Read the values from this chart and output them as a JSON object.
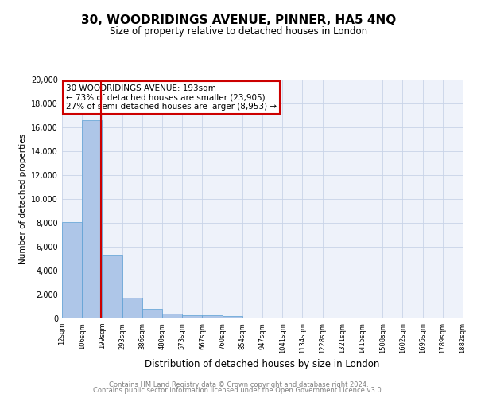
{
  "title": "30, WOODRIDINGS AVENUE, PINNER, HA5 4NQ",
  "subtitle": "Size of property relative to detached houses in London",
  "xlabel": "Distribution of detached houses by size in London",
  "ylabel": "Number of detached properties",
  "bin_labels": [
    "12sqm",
    "106sqm",
    "199sqm",
    "293sqm",
    "386sqm",
    "480sqm",
    "573sqm",
    "667sqm",
    "760sqm",
    "854sqm",
    "947sqm",
    "1041sqm",
    "1134sqm",
    "1228sqm",
    "1321sqm",
    "1415sqm",
    "1508sqm",
    "1602sqm",
    "1695sqm",
    "1789sqm",
    "1882sqm"
  ],
  "bar_heights": [
    8050,
    16600,
    5350,
    1750,
    800,
    375,
    300,
    250,
    200,
    80,
    50,
    30,
    20,
    15,
    10,
    8,
    5,
    4,
    3,
    2
  ],
  "bar_color": "#aec6e8",
  "bar_edge_color": "#5a9fd4",
  "property_line_color": "#cc0000",
  "property_box_edge_color": "#cc0000",
  "annotation_line1": "30 WOODRIDINGS AVENUE: 193sqm",
  "annotation_line2": "← 73% of detached houses are smaller (23,905)",
  "annotation_line3": "27% of semi-detached houses are larger (8,953) →",
  "ylim": [
    0,
    20000
  ],
  "yticks": [
    0,
    2000,
    4000,
    6000,
    8000,
    10000,
    12000,
    14000,
    16000,
    18000,
    20000
  ],
  "grid_color": "#c8d4e8",
  "bg_color": "#eef2fa",
  "footer1": "Contains HM Land Registry data © Crown copyright and database right 2024.",
  "footer2": "Contains public sector information licensed under the Open Government Licence v3.0."
}
